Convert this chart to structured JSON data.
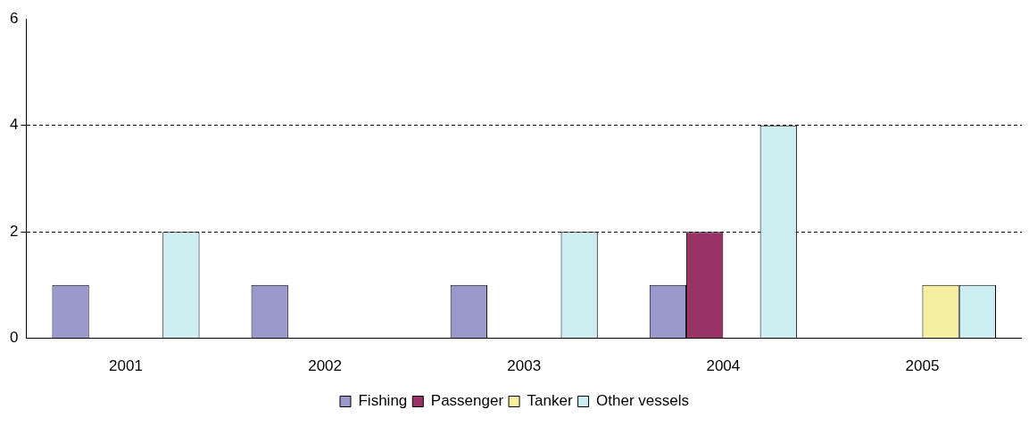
{
  "chart_data": {
    "type": "bar",
    "categories": [
      "2001",
      "2002",
      "2003",
      "2004",
      "2005"
    ],
    "series": [
      {
        "name": "Fishing",
        "color": "#9999cc",
        "values": [
          1,
          1,
          1,
          1,
          0
        ]
      },
      {
        "name": "Passenger",
        "color": "#993366",
        "values": [
          0,
          0,
          0,
          2,
          0
        ]
      },
      {
        "name": "Tanker",
        "color": "#f5f0a0",
        "values": [
          0,
          0,
          0,
          0,
          1
        ]
      },
      {
        "name": "Other vessels",
        "color": "#cdeef0",
        "values": [
          2,
          0,
          2,
          4,
          1
        ]
      }
    ],
    "ylim": [
      0,
      6
    ],
    "yticks": [
      0,
      2,
      4,
      6
    ],
    "grid": "y",
    "legend": "bottom"
  }
}
